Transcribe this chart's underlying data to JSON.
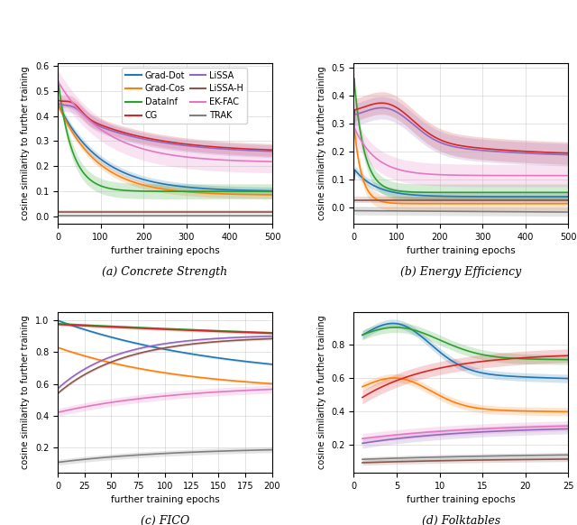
{
  "colors": {
    "Grad-Dot": "#1f77b4",
    "Grad-Cos": "#ff7f0e",
    "DataInf": "#2ca02c",
    "CG": "#d62728",
    "LiSSA": "#9467bd",
    "LiSSA-H": "#8c564b",
    "EK-FAC": "#e377c2",
    "TRAK": "#7f7f7f"
  },
  "subplot_titles": [
    "(a) Concrete Strength",
    "(b) Energy Efficiency",
    "(c) FICO",
    "(d) Folktables"
  ],
  "xlabel": "further training epochs",
  "ylabel": "cosine similarity to further training",
  "legend_order": [
    "Grad-Dot",
    "Grad-Cos",
    "DataInf",
    "CG",
    "LiSSA",
    "LiSSA-H",
    "EK-FAC",
    "TRAK"
  ]
}
